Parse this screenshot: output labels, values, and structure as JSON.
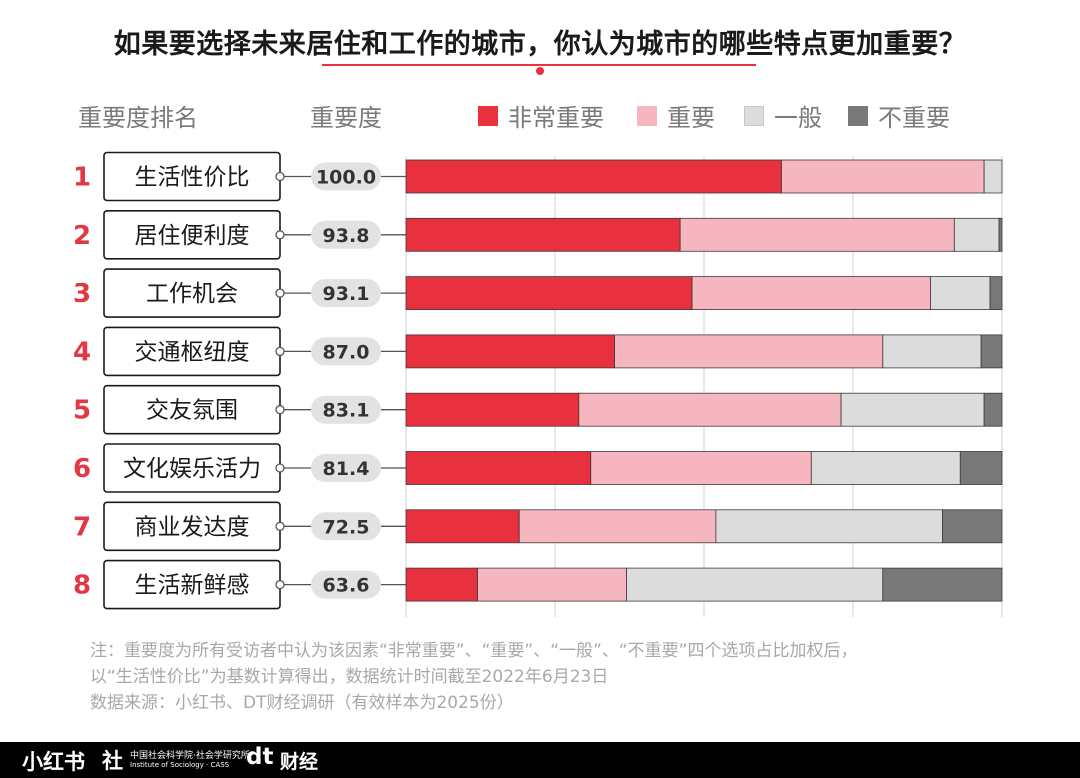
{
  "title": "如果要选择未来居住和工作的城市，你认为城市的哪些特点更加重要？",
  "column_headers": {
    "rank": "重要度排名",
    "score": "重要度"
  },
  "colors": {
    "very_important": "#e8303f",
    "important": "#f6b6bf",
    "average": "#dcdcdc",
    "not_important": "#787878",
    "rank": "#e23844",
    "text": "#1a1a1a",
    "muted": "#a8a8a8"
  },
  "chart_data": {
    "type": "bar",
    "stacked": true,
    "orientation": "horizontal",
    "percent_stacked": true,
    "categories": [
      "生活性价比",
      "居住便利度",
      "工作机会",
      "交通枢纽度",
      "交友氛围",
      "文化娱乐活力",
      "商业发达度",
      "生活新鲜感"
    ],
    "ranks": [
      "1",
      "2",
      "3",
      "4",
      "5",
      "6",
      "7",
      "8"
    ],
    "scores": [
      "100.0",
      "93.8",
      "93.1",
      "87.0",
      "83.1",
      "81.4",
      "72.5",
      "63.6"
    ],
    "series": [
      {
        "name": "非常重要",
        "values": [
          63,
          46,
          48,
          35,
          29,
          31,
          19,
          12
        ]
      },
      {
        "name": "重要",
        "values": [
          34,
          46,
          40,
          45,
          44,
          37,
          33,
          25
        ]
      },
      {
        "name": "一般",
        "values": [
          3,
          7.5,
          10,
          16.5,
          24,
          25,
          38,
          43
        ]
      },
      {
        "name": "不重要",
        "values": [
          0,
          0.5,
          2,
          3.5,
          3,
          7,
          10,
          20
        ]
      }
    ],
    "xlim": [
      0,
      100
    ],
    "legend_position": "top"
  },
  "notes": [
    "注：重要度为所有受访者中认为该因素“非常重要”、“重要”、“一般”、“不重要”四个选项占比加权后，",
    "以“生活性价比”为基数计算得出，数据统计时间截至2022年6月23日",
    "数据来源：小红书、DT财经调研（有效样本为2025份）"
  ],
  "footer": {
    "logo_xhs": "小红书",
    "logo_cass_mark": "社",
    "logo_cass_cn": "中国社会科学院·社会学研究所",
    "logo_cass_en": "Institute of Sociology · CASS",
    "logo_dt_mark": "dt",
    "logo_dt_text": "财经"
  }
}
